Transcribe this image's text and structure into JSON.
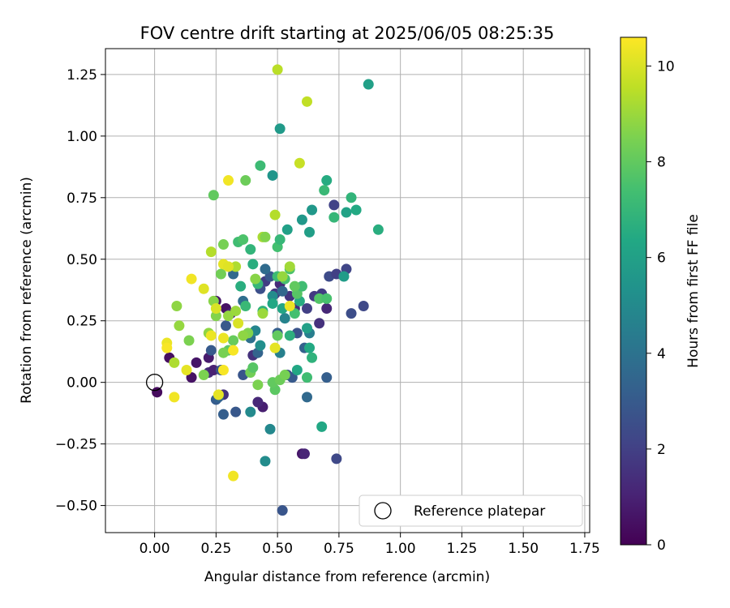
{
  "chart_data": {
    "type": "scatter",
    "title": "FOV centre drift starting at 2025/06/05 08:25:35",
    "xlabel": "Angular distance from reference (arcmin)",
    "ylabel": "Rotation from reference (arcmin)",
    "xlim": [
      -0.2,
      1.77
    ],
    "ylim": [
      -0.61,
      1.355
    ],
    "xticks": [
      0.0,
      0.25,
      0.5,
      0.75,
      1.0,
      1.25,
      1.5,
      1.75
    ],
    "xtick_labels": [
      "0.00",
      "0.25",
      "0.50",
      "0.75",
      "1.00",
      "1.25",
      "1.50",
      "1.75"
    ],
    "yticks": [
      -0.5,
      -0.25,
      0.0,
      0.25,
      0.5,
      0.75,
      1.0,
      1.25
    ],
    "ytick_labels": [
      "−0.50",
      "−0.25",
      "0.00",
      "0.25",
      "0.50",
      "0.75",
      "1.00",
      "1.25"
    ],
    "grid": true,
    "colorbar": {
      "label": "Hours from first FF file",
      "range": [
        0,
        10.6
      ],
      "ticks": [
        0,
        2,
        4,
        6,
        8,
        10
      ],
      "tick_labels": [
        "0",
        "2",
        "4",
        "6",
        "8",
        "10"
      ],
      "colormap": "viridis"
    },
    "legend": {
      "position": "lower-right",
      "entries": [
        "Reference platepar"
      ]
    },
    "reference_point": {
      "x": 0.0,
      "y": 0.0
    },
    "points": [
      {
        "x": 0.01,
        "y": -0.04,
        "c": 0.3
      },
      {
        "x": 0.06,
        "y": 0.1,
        "c": 0.4
      },
      {
        "x": 0.15,
        "y": 0.02,
        "c": 0.5
      },
      {
        "x": 0.17,
        "y": 0.08,
        "c": 0.6
      },
      {
        "x": 0.22,
        "y": 0.1,
        "c": 0.8
      },
      {
        "x": 0.25,
        "y": 0.33,
        "c": 0.7
      },
      {
        "x": 0.29,
        "y": 0.3,
        "c": 0.5
      },
      {
        "x": 0.31,
        "y": 0.28,
        "c": 1.0
      },
      {
        "x": 0.44,
        "y": -0.1,
        "c": 0.9
      },
      {
        "x": 0.42,
        "y": -0.08,
        "c": 1.2
      },
      {
        "x": 0.6,
        "y": -0.29,
        "c": 0.7
      },
      {
        "x": 0.61,
        "y": -0.29,
        "c": 1.1
      },
      {
        "x": 0.22,
        "y": 0.04,
        "c": 1.3
      },
      {
        "x": 0.24,
        "y": 0.05,
        "c": 1.0
      },
      {
        "x": 0.28,
        "y": -0.05,
        "c": 1.5
      },
      {
        "x": 0.4,
        "y": 0.11,
        "c": 1.5
      },
      {
        "x": 0.45,
        "y": 0.41,
        "c": 1.9
      },
      {
        "x": 0.49,
        "y": 0.36,
        "c": 1.7
      },
      {
        "x": 0.51,
        "y": 0.4,
        "c": 1.3
      },
      {
        "x": 0.55,
        "y": 0.35,
        "c": 1.6
      },
      {
        "x": 0.57,
        "y": 0.3,
        "c": 1.4
      },
      {
        "x": 0.62,
        "y": 0.3,
        "c": 2.0
      },
      {
        "x": 0.65,
        "y": 0.35,
        "c": 1.8
      },
      {
        "x": 0.67,
        "y": 0.24,
        "c": 1.5
      },
      {
        "x": 0.68,
        "y": 0.36,
        "c": 1.9
      },
      {
        "x": 0.7,
        "y": 0.3,
        "c": 1.2
      },
      {
        "x": 0.73,
        "y": 0.72,
        "c": 2.1
      },
      {
        "x": 0.71,
        "y": 0.43,
        "c": 2.4
      },
      {
        "x": 0.74,
        "y": 0.44,
        "c": 2.0
      },
      {
        "x": 0.78,
        "y": 0.46,
        "c": 2.2
      },
      {
        "x": 0.8,
        "y": 0.28,
        "c": 2.5
      },
      {
        "x": 0.85,
        "y": 0.31,
        "c": 2.3
      },
      {
        "x": 0.74,
        "y": -0.31,
        "c": 2.3
      },
      {
        "x": 0.52,
        "y": -0.52,
        "c": 2.8
      },
      {
        "x": 0.33,
        "y": -0.12,
        "c": 2.9
      },
      {
        "x": 0.28,
        "y": -0.13,
        "c": 3.2
      },
      {
        "x": 0.25,
        "y": -0.07,
        "c": 3.1
      },
      {
        "x": 0.26,
        "y": -0.06,
        "c": 3.4
      },
      {
        "x": 0.23,
        "y": 0.13,
        "c": 3.0
      },
      {
        "x": 0.27,
        "y": 0.05,
        "c": 2.7
      },
      {
        "x": 0.29,
        "y": 0.23,
        "c": 2.9
      },
      {
        "x": 0.36,
        "y": 0.03,
        "c": 2.8
      },
      {
        "x": 0.43,
        "y": 0.38,
        "c": 2.6
      },
      {
        "x": 0.47,
        "y": 0.43,
        "c": 2.9
      },
      {
        "x": 0.5,
        "y": 0.2,
        "c": 3.2
      },
      {
        "x": 0.54,
        "y": 0.03,
        "c": 2.5
      },
      {
        "x": 0.56,
        "y": 0.02,
        "c": 3.0
      },
      {
        "x": 0.58,
        "y": 0.2,
        "c": 2.7
      },
      {
        "x": 0.61,
        "y": 0.14,
        "c": 3.3
      },
      {
        "x": 0.7,
        "y": 0.02,
        "c": 3.2
      },
      {
        "x": 0.32,
        "y": 0.44,
        "c": 3.6
      },
      {
        "x": 0.36,
        "y": 0.33,
        "c": 3.8
      },
      {
        "x": 0.39,
        "y": 0.18,
        "c": 3.9
      },
      {
        "x": 0.42,
        "y": 0.12,
        "c": 3.4
      },
      {
        "x": 0.45,
        "y": 0.46,
        "c": 3.7
      },
      {
        "x": 0.52,
        "y": 0.37,
        "c": 3.5
      },
      {
        "x": 0.62,
        "y": -0.06,
        "c": 3.6
      },
      {
        "x": 0.63,
        "y": 0.2,
        "c": 4.5
      },
      {
        "x": 0.51,
        "y": 0.12,
        "c": 4.6
      },
      {
        "x": 0.53,
        "y": 0.26,
        "c": 4.7
      },
      {
        "x": 0.47,
        "y": -0.19,
        "c": 4.9
      },
      {
        "x": 0.39,
        "y": -0.12,
        "c": 5.0
      },
      {
        "x": 0.45,
        "y": -0.32,
        "c": 5.1
      },
      {
        "x": 0.41,
        "y": 0.21,
        "c": 4.8
      },
      {
        "x": 0.43,
        "y": 0.15,
        "c": 5.2
      },
      {
        "x": 0.48,
        "y": 0.35,
        "c": 5.1
      },
      {
        "x": 0.51,
        "y": 1.03,
        "c": 5.7
      },
      {
        "x": 0.48,
        "y": 0.84,
        "c": 5.5
      },
      {
        "x": 0.64,
        "y": 0.7,
        "c": 5.6
      },
      {
        "x": 0.63,
        "y": 0.61,
        "c": 5.9
      },
      {
        "x": 0.6,
        "y": 0.66,
        "c": 5.6
      },
      {
        "x": 0.54,
        "y": 0.62,
        "c": 6.0
      },
      {
        "x": 0.87,
        "y": 1.21,
        "c": 6.0
      },
      {
        "x": 0.8,
        "y": 0.75,
        "c": 6.9
      },
      {
        "x": 0.7,
        "y": 0.82,
        "c": 6.5
      },
      {
        "x": 0.69,
        "y": 0.78,
        "c": 7.1
      },
      {
        "x": 0.73,
        "y": 0.67,
        "c": 7.0
      },
      {
        "x": 0.77,
        "y": 0.43,
        "c": 5.8
      },
      {
        "x": 0.78,
        "y": 0.69,
        "c": 6.1
      },
      {
        "x": 0.82,
        "y": 0.7,
        "c": 6.4
      },
      {
        "x": 0.91,
        "y": 0.62,
        "c": 6.6
      },
      {
        "x": 0.68,
        "y": -0.18,
        "c": 6.3
      },
      {
        "x": 0.62,
        "y": 0.02,
        "c": 7.3
      },
      {
        "x": 0.58,
        "y": 0.05,
        "c": 6.3
      },
      {
        "x": 0.57,
        "y": 0.28,
        "c": 7.4
      },
      {
        "x": 0.63,
        "y": 0.14,
        "c": 6.4
      },
      {
        "x": 0.64,
        "y": 0.1,
        "c": 6.8
      },
      {
        "x": 0.62,
        "y": 0.22,
        "c": 6.0
      },
      {
        "x": 0.59,
        "y": 0.33,
        "c": 6.5
      },
      {
        "x": 0.55,
        "y": 0.19,
        "c": 6.7
      },
      {
        "x": 0.52,
        "y": 0.3,
        "c": 6.2
      },
      {
        "x": 0.48,
        "y": 0.32,
        "c": 6.3
      },
      {
        "x": 0.44,
        "y": 0.29,
        "c": 6.8
      },
      {
        "x": 0.42,
        "y": 0.4,
        "c": 7.0
      },
      {
        "x": 0.4,
        "y": 0.48,
        "c": 6.6
      },
      {
        "x": 0.39,
        "y": 0.54,
        "c": 6.9
      },
      {
        "x": 0.35,
        "y": 0.39,
        "c": 6.6
      },
      {
        "x": 0.37,
        "y": 0.31,
        "c": 7.1
      },
      {
        "x": 0.34,
        "y": 0.57,
        "c": 7.3
      },
      {
        "x": 0.36,
        "y": 0.58,
        "c": 7.6
      },
      {
        "x": 0.43,
        "y": 0.88,
        "c": 7.2
      },
      {
        "x": 0.5,
        "y": 0.55,
        "c": 7.4
      },
      {
        "x": 0.51,
        "y": 0.58,
        "c": 7.0
      },
      {
        "x": 0.5,
        "y": 0.43,
        "c": 7.2
      },
      {
        "x": 0.53,
        "y": 0.42,
        "c": 7.5
      },
      {
        "x": 0.55,
        "y": 0.46,
        "c": 7.6
      },
      {
        "x": 0.58,
        "y": 0.36,
        "c": 7.8
      },
      {
        "x": 0.6,
        "y": 0.39,
        "c": 7.3
      },
      {
        "x": 0.57,
        "y": 0.39,
        "c": 8.0
      },
      {
        "x": 0.67,
        "y": 0.34,
        "c": 7.7
      },
      {
        "x": 0.7,
        "y": 0.34,
        "c": 7.5
      },
      {
        "x": 0.42,
        "y": -0.01,
        "c": 8.5
      },
      {
        "x": 0.49,
        "y": -0.03,
        "c": 7.9
      },
      {
        "x": 0.48,
        "y": 0.0,
        "c": 8.0
      },
      {
        "x": 0.51,
        "y": 0.01,
        "c": 8.2
      },
      {
        "x": 0.53,
        "y": 0.03,
        "c": 8.4
      },
      {
        "x": 0.5,
        "y": 0.19,
        "c": 8.0
      },
      {
        "x": 0.39,
        "y": 0.04,
        "c": 8.3
      },
      {
        "x": 0.4,
        "y": 0.06,
        "c": 7.8
      },
      {
        "x": 0.3,
        "y": 0.13,
        "c": 7.9
      },
      {
        "x": 0.28,
        "y": 0.12,
        "c": 8.4
      },
      {
        "x": 0.32,
        "y": 0.17,
        "c": 8.1
      },
      {
        "x": 0.38,
        "y": 0.2,
        "c": 8.6
      },
      {
        "x": 0.37,
        "y": 0.82,
        "c": 8.2
      },
      {
        "x": 0.24,
        "y": 0.76,
        "c": 8.0
      },
      {
        "x": 0.27,
        "y": 0.44,
        "c": 8.3
      },
      {
        "x": 0.28,
        "y": 0.56,
        "c": 8.4
      },
      {
        "x": 0.24,
        "y": 0.33,
        "c": 8.7
      },
      {
        "x": 0.22,
        "y": 0.2,
        "c": 8.8
      },
      {
        "x": 0.2,
        "y": 0.03,
        "c": 8.5
      },
      {
        "x": 0.14,
        "y": 0.17,
        "c": 8.5
      },
      {
        "x": 0.1,
        "y": 0.23,
        "c": 8.9
      },
      {
        "x": 0.09,
        "y": 0.31,
        "c": 8.8
      },
      {
        "x": 0.25,
        "y": 0.27,
        "c": 8.6
      },
      {
        "x": 0.3,
        "y": 0.27,
        "c": 8.9
      },
      {
        "x": 0.33,
        "y": 0.29,
        "c": 9.0
      },
      {
        "x": 0.36,
        "y": 0.19,
        "c": 8.8
      },
      {
        "x": 0.41,
        "y": 0.42,
        "c": 8.7
      },
      {
        "x": 0.44,
        "y": 0.59,
        "c": 9.2
      },
      {
        "x": 0.45,
        "y": 0.59,
        "c": 8.6
      },
      {
        "x": 0.44,
        "y": 0.28,
        "c": 9.0
      },
      {
        "x": 0.52,
        "y": 0.43,
        "c": 8.9
      },
      {
        "x": 0.55,
        "y": 0.47,
        "c": 9.1
      },
      {
        "x": 0.49,
        "y": 0.68,
        "c": 9.4
      },
      {
        "x": 0.59,
        "y": 0.89,
        "c": 9.7
      },
      {
        "x": 0.62,
        "y": 1.14,
        "c": 9.6
      },
      {
        "x": 0.5,
        "y": 1.27,
        "c": 9.5
      },
      {
        "x": 0.33,
        "y": 0.47,
        "c": 9.3
      },
      {
        "x": 0.23,
        "y": 0.53,
        "c": 9.4
      },
      {
        "x": 0.08,
        "y": 0.08,
        "c": 9.3
      },
      {
        "x": 0.05,
        "y": 0.16,
        "c": 10.3
      },
      {
        "x": 0.05,
        "y": 0.14,
        "c": 10.5
      },
      {
        "x": 0.08,
        "y": -0.06,
        "c": 10.4
      },
      {
        "x": 0.13,
        "y": 0.05,
        "c": 10.2
      },
      {
        "x": 0.15,
        "y": 0.42,
        "c": 10.4
      },
      {
        "x": 0.2,
        "y": 0.38,
        "c": 10.1
      },
      {
        "x": 0.23,
        "y": 0.19,
        "c": 10.3
      },
      {
        "x": 0.25,
        "y": 0.3,
        "c": 10.0
      },
      {
        "x": 0.26,
        "y": -0.05,
        "c": 10.2
      },
      {
        "x": 0.28,
        "y": 0.05,
        "c": 10.5
      },
      {
        "x": 0.28,
        "y": 0.18,
        "c": 10.3
      },
      {
        "x": 0.28,
        "y": 0.48,
        "c": 10.2
      },
      {
        "x": 0.3,
        "y": 0.47,
        "c": 10.1
      },
      {
        "x": 0.3,
        "y": 0.82,
        "c": 10.4
      },
      {
        "x": 0.32,
        "y": 0.13,
        "c": 10.5
      },
      {
        "x": 0.34,
        "y": 0.24,
        "c": 10.0
      },
      {
        "x": 0.32,
        "y": -0.38,
        "c": 10.4
      },
      {
        "x": 0.49,
        "y": 0.14,
        "c": 10.2
      },
      {
        "x": 0.55,
        "y": 0.31,
        "c": 10.3
      }
    ]
  }
}
